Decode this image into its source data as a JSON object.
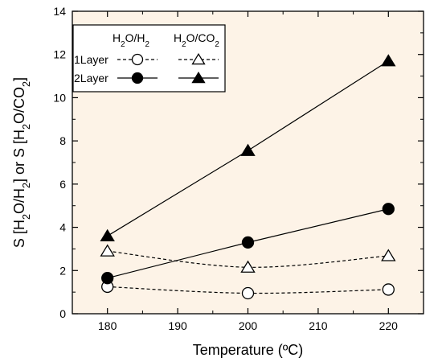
{
  "chart_data": {
    "type": "line",
    "title": "",
    "xlabel": "Temperature (ºC)",
    "ylabel": {
      "pre": "S [H",
      "s1": "2",
      "mid": "O/H",
      "s2": "2",
      "mid2": "] or S [H",
      "s3": "2",
      "mid3": "O/CO",
      "s4": "2",
      "post": "]"
    },
    "xlim": [
      175,
      225
    ],
    "ylim": [
      0,
      14
    ],
    "xticks": [
      180,
      190,
      200,
      210,
      220
    ],
    "yticks": [
      0,
      2,
      4,
      6,
      8,
      10,
      12,
      14
    ],
    "x": [
      180,
      200,
      220
    ],
    "series": [
      {
        "group": "1Layer",
        "pair": "H2O/H2",
        "marker": "circle",
        "filled": false,
        "dashed": true,
        "values": [
          1.25,
          0.95,
          1.12
        ]
      },
      {
        "group": "1Layer",
        "pair": "H2O/CO2",
        "marker": "triangle",
        "filled": false,
        "dashed": true,
        "values": [
          2.9,
          2.15,
          2.68
        ]
      },
      {
        "group": "2Layer",
        "pair": "H2O/H2",
        "marker": "circle",
        "filled": true,
        "dashed": false,
        "values": [
          1.65,
          3.3,
          4.85
        ]
      },
      {
        "group": "2Layer",
        "pair": "H2O/CO2",
        "marker": "triangle",
        "filled": true,
        "dashed": false,
        "values": [
          3.6,
          7.55,
          11.7
        ]
      }
    ],
    "legend": {
      "placement": "top-left",
      "col1": {
        "pre": "H",
        "sub1": "2",
        "mid": "O/H",
        "sub2": "2"
      },
      "col2": {
        "pre": "H",
        "sub1": "2",
        "mid": "O/CO",
        "sub2": "2"
      },
      "row1": "1Layer",
      "row2": "2Layer"
    },
    "background": "#fdf3e7",
    "grid": false
  }
}
